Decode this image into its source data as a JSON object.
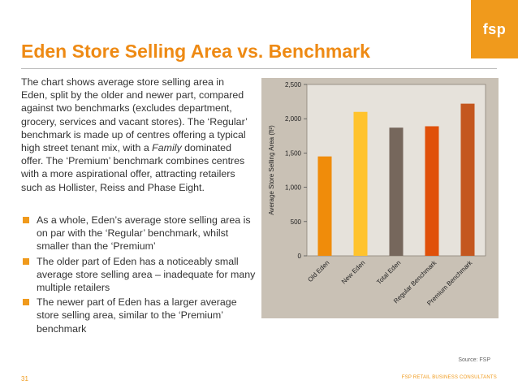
{
  "logo": {
    "text": "fsp"
  },
  "title": "Eden Store Selling Area vs. Benchmark",
  "intro": {
    "before": "The chart shows average store selling area in Eden, split by the older and newer part, compared against two benchmarks (excludes department, grocery, services and vacant stores).  The ‘Regular’ benchmark is made up of centres offering a typical high street tenant mix, with a ",
    "emphasis": "Family",
    "after": " dominated offer.  The ‘Premium’ benchmark combines centres with a more aspirational offer, attracting retailers such as Hollister, Reiss and Phase Eight."
  },
  "bullets": [
    "As a whole, Eden’s average store selling area is on par with the ‘Regular’ benchmark, whilst smaller than the ‘Premium’",
    "The older part of Eden has a noticeably small average store selling area – inadequate for many multiple retailers",
    "The newer part of Eden has a larger average store selling area, similar to the ‘Premium’ benchmark"
  ],
  "colors": {
    "accent": "#f09a1c",
    "chart_background": "#c9c1b5",
    "plot_background": "#e6e2db"
  },
  "chart_data": {
    "type": "bar",
    "title": "",
    "xlabel": "",
    "ylabel": "Average Store Selling Area (ft²)",
    "ylim": [
      0,
      2500
    ],
    "yticks": [
      0,
      500,
      1000,
      1500,
      2000,
      2500
    ],
    "ytick_labels": [
      "0",
      "500",
      "1,000",
      "1,500",
      "2,000",
      "2,500"
    ],
    "grid": false,
    "categories": [
      "Old Eden",
      "New Eden",
      "Total Eden",
      "Regular Benchmark",
      "Premium Benchmark"
    ],
    "values": [
      1450,
      2100,
      1870,
      1890,
      2220
    ],
    "bar_colors": [
      "#f08c0a",
      "#ffc32d",
      "#76675c",
      "#e0500a",
      "#c4571f"
    ]
  },
  "source": "Source: FSP",
  "page_number": "31",
  "footer": "FSP RETAIL BUSINESS CONSULTANTS"
}
